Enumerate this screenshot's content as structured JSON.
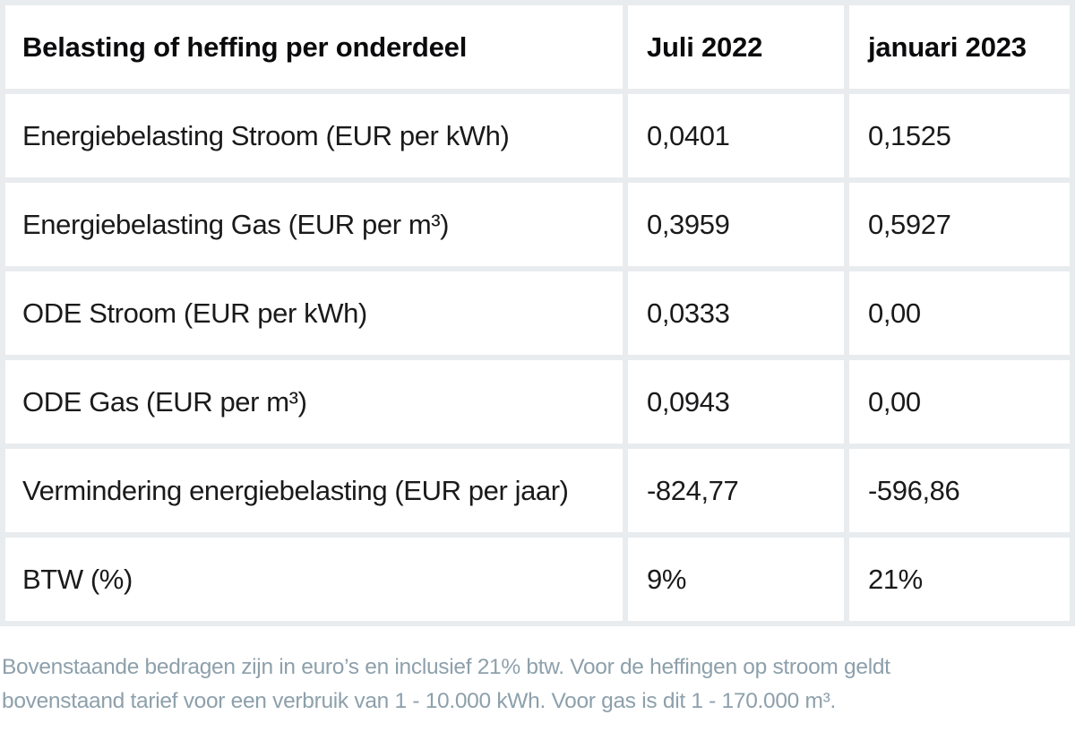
{
  "colors": {
    "grid_line": "#e8ecee",
    "cell_background": "#ffffff",
    "text": "#1a1a1c",
    "footnote_text": "#8da0ab"
  },
  "table": {
    "headers": [
      "Belasting of heffing per onderdeel",
      "Juli 2022",
      "januari 2023"
    ],
    "rows": [
      {
        "label": "Energiebelasting Stroom (EUR per kWh)",
        "values": [
          "0,0401",
          "0,1525"
        ]
      },
      {
        "label": "Energiebelasting Gas (EUR per m³)",
        "values": [
          "0,3959",
          "0,5927"
        ]
      },
      {
        "label": "ODE Stroom (EUR per kWh)",
        "values": [
          "0,0333",
          "0,00"
        ]
      },
      {
        "label": "ODE Gas (EUR per m³)",
        "values": [
          "0,0943",
          "0,00"
        ]
      },
      {
        "label": "Vermindering energiebelasting (EUR per jaar)",
        "values": [
          "-824,77",
          "-596,86"
        ]
      },
      {
        "label": "BTW (%)",
        "values": [
          "9%",
          "21%"
        ]
      }
    ]
  },
  "footnote": "Bovenstaande bedragen zijn in euro’s en inclusief 21% btw. Voor de heffingen op stroom geldt bovenstaand tarief voor een verbruik van 1 - 10.000 kWh. Voor gas is dit 1 - 170.000 m³.",
  "chart_data": {
    "type": "table",
    "title": "Belasting of heffing per onderdeel",
    "columns": [
      "Belasting of heffing per onderdeel",
      "Juli 2022",
      "januari 2023"
    ],
    "rows": [
      [
        "Energiebelasting Stroom (EUR per kWh)",
        "0,0401",
        "0,1525"
      ],
      [
        "Energiebelasting Gas (EUR per m³)",
        "0,3959",
        "0,5927"
      ],
      [
        "ODE Stroom (EUR per kWh)",
        "0,0333",
        "0,00"
      ],
      [
        "ODE Gas (EUR per m³)",
        "0,0943",
        "0,00"
      ],
      [
        "Vermindering energiebelasting (EUR per jaar)",
        "-824,77",
        "-596,86"
      ],
      [
        "BTW (%)",
        "9%",
        "21%"
      ]
    ],
    "footnote": "Bovenstaande bedragen zijn in euro’s en inclusief 21% btw. Voor de heffingen op stroom geldt bovenstaand tarief voor een verbruik van 1 - 10.000 kWh. Voor gas is dit 1 - 170.000 m³."
  }
}
